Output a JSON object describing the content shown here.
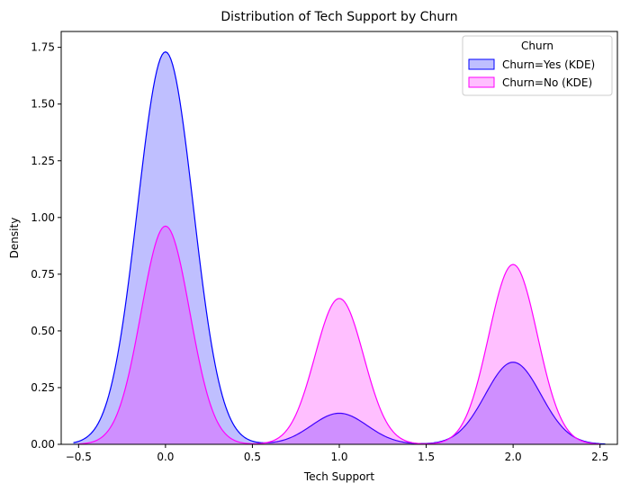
{
  "chart_data": {
    "type": "area",
    "title": "Distribution of Tech Support by Churn",
    "xlabel": "Tech Support",
    "ylabel": "Density",
    "xlim": [
      -0.6,
      2.6
    ],
    "ylim": [
      0,
      1.82
    ],
    "xticks": [
      -0.5,
      0.0,
      0.5,
      1.0,
      1.5,
      2.0,
      2.5
    ],
    "xtick_labels": [
      "−0.5",
      "0.0",
      "0.5",
      "1.0",
      "1.5",
      "2.0",
      "2.5"
    ],
    "yticks": [
      0,
      0.25,
      0.5,
      0.75,
      1.0,
      1.25,
      1.5,
      1.75
    ],
    "ytick_labels": [
      "0.00",
      "0.25",
      "0.50",
      "0.75",
      "1.00",
      "1.25",
      "1.50",
      "1.75"
    ],
    "grid": false,
    "legend": {
      "title": "Churn",
      "placement": "top-right"
    },
    "series": [
      {
        "name": "Churn=Yes (KDE)",
        "line_color": "#0000ff",
        "fill_color": "#0000ff",
        "fill_opacity": 0.25,
        "x_range": [
          -0.53,
          2.53
        ],
        "peaks": [
          {
            "center": 0.0,
            "height": 1.73,
            "sigma": 0.16
          },
          {
            "center": 1.0,
            "height": 0.137,
            "sigma": 0.16
          },
          {
            "center": 2.0,
            "height": 0.362,
            "sigma": 0.16
          }
        ]
      },
      {
        "name": "Churn=No (KDE)",
        "line_color": "#ff00ff",
        "fill_color": "#ff00ff",
        "fill_opacity": 0.25,
        "x_range": [
          -0.5,
          2.5
        ],
        "peaks": [
          {
            "center": 0.0,
            "height": 0.962,
            "sigma": 0.14
          },
          {
            "center": 1.0,
            "height": 0.643,
            "sigma": 0.14
          },
          {
            "center": 2.0,
            "height": 0.793,
            "sigma": 0.14
          }
        ]
      }
    ]
  }
}
